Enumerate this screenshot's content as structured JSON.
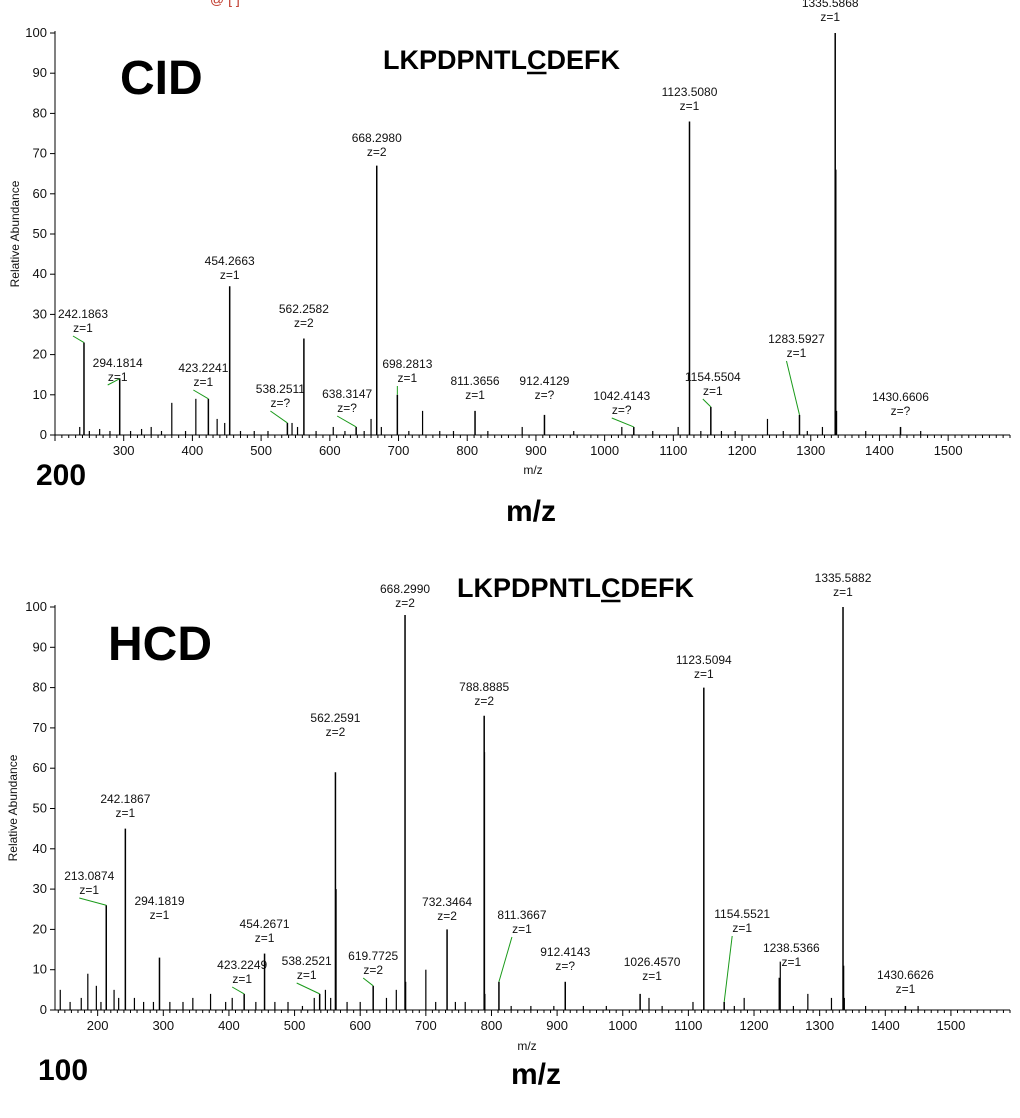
{
  "cropped_header": "@  [            ]",
  "chart_data": [
    {
      "type": "bar",
      "panel": "top",
      "method_label": "CID",
      "peptide": "LKPDPNTLCDEFK",
      "underlined_residue": "C",
      "corner_label": "200",
      "xlabel": "m/z",
      "xlabel_large": "m/z",
      "ylabel": "Relative Abundance",
      "xlim": [
        200,
        1590
      ],
      "ylim": [
        0,
        100
      ],
      "xticks": [
        300,
        400,
        500,
        600,
        700,
        800,
        900,
        1000,
        1100,
        1200,
        1300,
        1400,
        1500
      ],
      "yticks": [
        0,
        10,
        20,
        30,
        40,
        50,
        60,
        70,
        80,
        90,
        100
      ],
      "labeled_peaks": [
        {
          "mz": 242.1863,
          "label": "242.1863",
          "charge": "z=1",
          "intensity": 23
        },
        {
          "mz": 294.1814,
          "label": "294.1814",
          "charge": "z=1",
          "intensity": 14
        },
        {
          "mz": 423.2241,
          "label": "423.2241",
          "charge": "z=1",
          "intensity": 9
        },
        {
          "mz": 454.2663,
          "label": "454.2663",
          "charge": "z=1",
          "intensity": 37
        },
        {
          "mz": 538.2511,
          "label": "538.2511",
          "charge": "z=?",
          "intensity": 3
        },
        {
          "mz": 562.2582,
          "label": "562.2582",
          "charge": "z=2",
          "intensity": 24
        },
        {
          "mz": 638.3147,
          "label": "638.3147",
          "charge": "z=?",
          "intensity": 2
        },
        {
          "mz": 668.298,
          "label": "668.2980",
          "charge": "z=2",
          "intensity": 67
        },
        {
          "mz": 698.2813,
          "label": "698.2813",
          "charge": "z=1",
          "intensity": 10
        },
        {
          "mz": 811.3656,
          "label": "811.3656",
          "charge": "z=1",
          "intensity": 6
        },
        {
          "mz": 912.4129,
          "label": "912.4129",
          "charge": "z=?",
          "intensity": 5
        },
        {
          "mz": 1042.4143,
          "label": "1042.4143",
          "charge": "z=?",
          "intensity": 2
        },
        {
          "mz": 1123.508,
          "label": "1123.5080",
          "charge": "z=1",
          "intensity": 78
        },
        {
          "mz": 1154.5504,
          "label": "1154.5504",
          "charge": "z=1",
          "intensity": 7
        },
        {
          "mz": 1283.5927,
          "label": "1283.5927",
          "charge": "z=1",
          "intensity": 5
        },
        {
          "mz": 1335.5868,
          "label": "1335.5868",
          "charge": "z=1",
          "intensity": 100
        },
        {
          "mz": 1430.6606,
          "label": "1430.6606",
          "charge": "z=?",
          "intensity": 2
        }
      ],
      "minor_peaks": [
        {
          "mz": 236,
          "intensity": 2
        },
        {
          "mz": 250,
          "intensity": 1
        },
        {
          "mz": 265,
          "intensity": 1.5
        },
        {
          "mz": 280,
          "intensity": 1
        },
        {
          "mz": 310,
          "intensity": 1
        },
        {
          "mz": 326,
          "intensity": 1.5
        },
        {
          "mz": 340,
          "intensity": 2
        },
        {
          "mz": 355,
          "intensity": 1
        },
        {
          "mz": 370,
          "intensity": 8
        },
        {
          "mz": 390,
          "intensity": 1
        },
        {
          "mz": 405,
          "intensity": 9
        },
        {
          "mz": 436,
          "intensity": 4
        },
        {
          "mz": 447,
          "intensity": 3
        },
        {
          "mz": 470,
          "intensity": 1
        },
        {
          "mz": 490,
          "intensity": 1
        },
        {
          "mz": 510,
          "intensity": 1
        },
        {
          "mz": 545,
          "intensity": 3
        },
        {
          "mz": 553,
          "intensity": 2
        },
        {
          "mz": 580,
          "intensity": 1
        },
        {
          "mz": 605,
          "intensity": 2
        },
        {
          "mz": 622,
          "intensity": 1
        },
        {
          "mz": 650,
          "intensity": 1
        },
        {
          "mz": 660,
          "intensity": 4
        },
        {
          "mz": 675,
          "intensity": 2
        },
        {
          "mz": 715,
          "intensity": 1
        },
        {
          "mz": 735,
          "intensity": 6
        },
        {
          "mz": 760,
          "intensity": 1
        },
        {
          "mz": 780,
          "intensity": 1
        },
        {
          "mz": 830,
          "intensity": 1
        },
        {
          "mz": 880,
          "intensity": 2
        },
        {
          "mz": 955,
          "intensity": 1
        },
        {
          "mz": 1025,
          "intensity": 2
        },
        {
          "mz": 1070,
          "intensity": 1
        },
        {
          "mz": 1107,
          "intensity": 2
        },
        {
          "mz": 1140,
          "intensity": 1
        },
        {
          "mz": 1170,
          "intensity": 1
        },
        {
          "mz": 1190,
          "intensity": 1
        },
        {
          "mz": 1237,
          "intensity": 4
        },
        {
          "mz": 1260,
          "intensity": 1
        },
        {
          "mz": 1295,
          "intensity": 1
        },
        {
          "mz": 1317,
          "intensity": 2
        },
        {
          "mz": 1336.6,
          "intensity": 66
        },
        {
          "mz": 1337.6,
          "intensity": 6
        },
        {
          "mz": 1380,
          "intensity": 1
        },
        {
          "mz": 1460,
          "intensity": 1
        }
      ]
    },
    {
      "type": "bar",
      "panel": "bottom",
      "method_label": "HCD",
      "peptide": "LKPDPNTLCDEFK",
      "underlined_residue": "C",
      "corner_label": "100",
      "xlabel": "m/z",
      "xlabel_large": "m/z",
      "ylabel": "Relative Abundance",
      "xlim": [
        135,
        1590
      ],
      "ylim": [
        0,
        100
      ],
      "xticks": [
        200,
        300,
        400,
        500,
        600,
        700,
        800,
        900,
        1000,
        1100,
        1200,
        1300,
        1400,
        1500
      ],
      "yticks": [
        0,
        10,
        20,
        30,
        40,
        50,
        60,
        70,
        80,
        90,
        100
      ],
      "labeled_peaks": [
        {
          "mz": 213.0874,
          "label": "213.0874",
          "charge": "z=1",
          "intensity": 26
        },
        {
          "mz": 242.1867,
          "label": "242.1867",
          "charge": "z=1",
          "intensity": 45
        },
        {
          "mz": 294.1819,
          "label": "294.1819",
          "charge": "z=1",
          "intensity": 13
        },
        {
          "mz": 423.2249,
          "label": "423.2249",
          "charge": "z=1",
          "intensity": 4
        },
        {
          "mz": 454.2671,
          "label": "454.2671",
          "charge": "z=1",
          "intensity": 14
        },
        {
          "mz": 538.2521,
          "label": "538.2521",
          "charge": "z=1",
          "intensity": 4
        },
        {
          "mz": 562.2591,
          "label": "562.2591",
          "charge": "z=2",
          "intensity": 59
        },
        {
          "mz": 619.7725,
          "label": "619.7725",
          "charge": "z=2",
          "intensity": 6
        },
        {
          "mz": 668.299,
          "label": "668.2990",
          "charge": "z=2",
          "intensity": 98
        },
        {
          "mz": 732.3464,
          "label": "732.3464",
          "charge": "z=2",
          "intensity": 20
        },
        {
          "mz": 788.8885,
          "label": "788.8885",
          "charge": "z=2",
          "intensity": 73
        },
        {
          "mz": 811.3667,
          "label": "811.3667",
          "charge": "z=1",
          "intensity": 7
        },
        {
          "mz": 912.4143,
          "label": "912.4143",
          "charge": "z=?",
          "intensity": 7
        },
        {
          "mz": 1026.457,
          "label": "1026.4570",
          "charge": "z=1",
          "intensity": 4
        },
        {
          "mz": 1123.5094,
          "label": "1123.5094",
          "charge": "z=1",
          "intensity": 80
        },
        {
          "mz": 1154.5521,
          "label": "1154.5521",
          "charge": "z=1",
          "intensity": 2
        },
        {
          "mz": 1238.5366,
          "label": "1238.5366",
          "charge": "z=1",
          "intensity": 8
        },
        {
          "mz": 1335.5882,
          "label": "1335.5882",
          "charge": "z=1",
          "intensity": 100
        },
        {
          "mz": 1430.6626,
          "label": "1430.6626",
          "charge": "z=1",
          "intensity": 1
        }
      ],
      "minor_peaks": [
        {
          "mz": 143,
          "intensity": 5
        },
        {
          "mz": 158,
          "intensity": 2
        },
        {
          "mz": 175,
          "intensity": 3
        },
        {
          "mz": 185,
          "intensity": 9
        },
        {
          "mz": 198,
          "intensity": 6
        },
        {
          "mz": 205,
          "intensity": 2
        },
        {
          "mz": 225,
          "intensity": 5
        },
        {
          "mz": 232,
          "intensity": 3
        },
        {
          "mz": 256,
          "intensity": 3
        },
        {
          "mz": 270,
          "intensity": 2
        },
        {
          "mz": 285,
          "intensity": 2
        },
        {
          "mz": 310,
          "intensity": 2
        },
        {
          "mz": 330,
          "intensity": 2
        },
        {
          "mz": 345,
          "intensity": 3
        },
        {
          "mz": 372,
          "intensity": 4
        },
        {
          "mz": 395,
          "intensity": 2
        },
        {
          "mz": 405,
          "intensity": 3
        },
        {
          "mz": 441,
          "intensity": 2
        },
        {
          "mz": 470,
          "intensity": 2
        },
        {
          "mz": 490,
          "intensity": 2
        },
        {
          "mz": 512,
          "intensity": 1
        },
        {
          "mz": 530,
          "intensity": 3
        },
        {
          "mz": 547,
          "intensity": 5
        },
        {
          "mz": 555,
          "intensity": 3
        },
        {
          "mz": 563.26,
          "intensity": 30
        },
        {
          "mz": 580,
          "intensity": 2
        },
        {
          "mz": 600,
          "intensity": 2
        },
        {
          "mz": 640,
          "intensity": 3
        },
        {
          "mz": 655,
          "intensity": 5
        },
        {
          "mz": 669.3,
          "intensity": 7
        },
        {
          "mz": 700,
          "intensity": 10
        },
        {
          "mz": 715,
          "intensity": 2
        },
        {
          "mz": 745,
          "intensity": 2
        },
        {
          "mz": 760,
          "intensity": 2
        },
        {
          "mz": 789.4,
          "intensity": 64
        },
        {
          "mz": 790,
          "intensity": 4
        },
        {
          "mz": 830,
          "intensity": 1
        },
        {
          "mz": 860,
          "intensity": 1
        },
        {
          "mz": 895,
          "intensity": 1
        },
        {
          "mz": 940,
          "intensity": 1
        },
        {
          "mz": 975,
          "intensity": 1
        },
        {
          "mz": 1040,
          "intensity": 3
        },
        {
          "mz": 1060,
          "intensity": 1
        },
        {
          "mz": 1107,
          "intensity": 2
        },
        {
          "mz": 1170,
          "intensity": 1
        },
        {
          "mz": 1185,
          "intensity": 3
        },
        {
          "mz": 1240,
          "intensity": 12
        },
        {
          "mz": 1260,
          "intensity": 1
        },
        {
          "mz": 1282,
          "intensity": 4
        },
        {
          "mz": 1318,
          "intensity": 3
        },
        {
          "mz": 1336.6,
          "intensity": 11
        },
        {
          "mz": 1337.6,
          "intensity": 3
        },
        {
          "mz": 1370,
          "intensity": 1
        },
        {
          "mz": 1450,
          "intensity": 1
        }
      ]
    }
  ]
}
